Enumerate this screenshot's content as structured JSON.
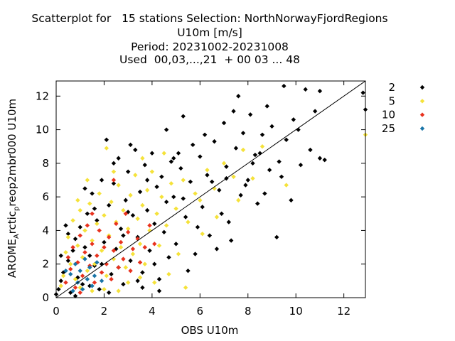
{
  "title_lines": [
    "Scatterplot for   15 stations Selection: NorthNorwayFjordRegions",
    "U10m [m/s]",
    "Period: 20231002-20231008",
    "Used  00,03,...,21  + 00 03 ... 48"
  ],
  "chart_data": {
    "type": "scatter",
    "xlabel": "OBS U10m",
    "ylabel": "AROME_Arctic_preop2mbr000 U10m",
    "ylabel_parts": {
      "main1": "AROME",
      "sub1": "A",
      "main2": "rctic",
      "sub2": "p",
      "main3": "reop2mbr000 U10m"
    },
    "xlim": [
      0,
      12.9
    ],
    "ylim": [
      0,
      12.9
    ],
    "xticks": [
      "0",
      "2",
      "4",
      "6",
      "8",
      "10",
      "12"
    ],
    "yticks": [
      "0",
      "2",
      "4",
      "6",
      "8",
      "10",
      "12"
    ],
    "grid": false,
    "legend_position": "right",
    "diagonal_line": true,
    "series": [
      {
        "name": "2",
        "color": "#000000",
        "points": [
          [
            0.0,
            0.2
          ],
          [
            0.1,
            0.5
          ],
          [
            0.2,
            1.0
          ],
          [
            0.3,
            1.5
          ],
          [
            0.5,
            2.2
          ],
          [
            0.6,
            0.3
          ],
          [
            0.7,
            2.8
          ],
          [
            0.8,
            3.5
          ],
          [
            0.9,
            1.2
          ],
          [
            1.0,
            4.2
          ],
          [
            1.1,
            0.8
          ],
          [
            1.2,
            3.0
          ],
          [
            1.3,
            5.0
          ],
          [
            1.4,
            2.5
          ],
          [
            1.5,
            6.2
          ],
          [
            1.6,
            1.9
          ],
          [
            1.7,
            4.6
          ],
          [
            1.8,
            0.5
          ],
          [
            1.9,
            7.0
          ],
          [
            2.0,
            3.3
          ],
          [
            2.1,
            9.4
          ],
          [
            2.2,
            5.5
          ],
          [
            2.3,
            1.4
          ],
          [
            2.4,
            6.8
          ],
          [
            2.5,
            2.9
          ],
          [
            2.6,
            8.3
          ],
          [
            2.7,
            4.1
          ],
          [
            2.8,
            0.8
          ],
          [
            2.9,
            5.8
          ],
          [
            3.0,
            7.5
          ],
          [
            3.1,
            2.2
          ],
          [
            3.2,
            4.9
          ],
          [
            3.3,
            8.8
          ],
          [
            3.4,
            3.6
          ],
          [
            3.5,
            6.3
          ],
          [
            3.6,
            1.5
          ],
          [
            3.7,
            7.9
          ],
          [
            3.8,
            5.2
          ],
          [
            3.9,
            2.8
          ],
          [
            4.0,
            8.6
          ],
          [
            4.1,
            4.4
          ],
          [
            4.2,
            6.6
          ],
          [
            4.3,
            1.1
          ],
          [
            4.4,
            7.2
          ],
          [
            4.5,
            3.9
          ],
          [
            4.6,
            5.7
          ],
          [
            4.7,
            2.4
          ],
          [
            4.8,
            8.1
          ],
          [
            4.9,
            6.0
          ],
          [
            5.0,
            3.2
          ],
          [
            5.2,
            7.7
          ],
          [
            5.3,
            10.8
          ],
          [
            5.4,
            4.8
          ],
          [
            5.6,
            6.9
          ],
          [
            5.8,
            2.6
          ],
          [
            6.0,
            8.4
          ],
          [
            6.1,
            5.4
          ],
          [
            6.3,
            7.3
          ],
          [
            6.4,
            3.7
          ],
          [
            6.6,
            9.3
          ],
          [
            6.8,
            6.4
          ],
          [
            7.0,
            10.4
          ],
          [
            7.1,
            7.8
          ],
          [
            7.2,
            4.5
          ],
          [
            7.4,
            11.1
          ],
          [
            7.5,
            8.9
          ],
          [
            7.7,
            6.1
          ],
          [
            7.8,
            9.8
          ],
          [
            8.0,
            7.0
          ],
          [
            8.1,
            10.9
          ],
          [
            8.3,
            8.5
          ],
          [
            8.4,
            5.6
          ],
          [
            8.6,
            9.7
          ],
          [
            8.8,
            11.4
          ],
          [
            8.9,
            7.6
          ],
          [
            9.0,
            10.2
          ],
          [
            9.2,
            3.6
          ],
          [
            9.3,
            8.1
          ],
          [
            9.5,
            12.6
          ],
          [
            9.6,
            9.4
          ],
          [
            9.8,
            5.8
          ],
          [
            9.9,
            10.6
          ],
          [
            10.2,
            7.9
          ],
          [
            10.4,
            12.4
          ],
          [
            10.6,
            8.8
          ],
          [
            10.8,
            11.1
          ],
          [
            11.0,
            12.3
          ],
          [
            11.2,
            8.2
          ],
          [
            12.8,
            12.2
          ],
          [
            12.9,
            11.2
          ],
          [
            1.2,
            6.5
          ],
          [
            2.4,
            8.0
          ],
          [
            3.1,
            9.1
          ],
          [
            5.1,
            8.6
          ],
          [
            5.9,
            4.2
          ],
          [
            6.7,
            2.9
          ],
          [
            7.3,
            3.4
          ],
          [
            4.6,
            10.0
          ],
          [
            2.8,
            3.7
          ],
          [
            1.6,
            5.3
          ],
          [
            0.4,
            4.3
          ],
          [
            8.7,
            6.2
          ],
          [
            9.4,
            7.2
          ],
          [
            10.1,
            10.0
          ],
          [
            6.2,
            9.7
          ],
          [
            7.6,
            12.0
          ],
          [
            4.3,
            0.4
          ],
          [
            5.5,
            1.6
          ],
          [
            3.6,
            0.6
          ],
          [
            2.2,
            0.3
          ],
          [
            1.4,
            0.7
          ],
          [
            0.8,
            0.1
          ],
          [
            0.2,
            2.5
          ],
          [
            0.5,
            3.8
          ],
          [
            6.9,
            5.0
          ],
          [
            7.9,
            6.7
          ],
          [
            3.0,
            5.1
          ],
          [
            3.8,
            7.0
          ],
          [
            4.9,
            8.3
          ],
          [
            5.7,
            9.1
          ],
          [
            8.2,
            8.0
          ],
          [
            1.9,
            2.0
          ],
          [
            2.6,
            1.8
          ],
          [
            3.4,
            1.0
          ],
          [
            4.1,
            2.0
          ],
          [
            5.3,
            5.9
          ],
          [
            6.5,
            6.9
          ],
          [
            7.1,
            7.1
          ],
          [
            8.5,
            8.6
          ],
          [
            11.0,
            8.3
          ]
        ]
      },
      {
        "name": "5",
        "color": "#f5e23a",
        "points": [
          [
            0.3,
            1.3
          ],
          [
            0.5,
            3.6
          ],
          [
            0.6,
            2.0
          ],
          [
            0.7,
            4.6
          ],
          [
            0.8,
            1.1
          ],
          [
            0.9,
            3.1
          ],
          [
            1.0,
            5.2
          ],
          [
            1.1,
            2.4
          ],
          [
            1.2,
            4.0
          ],
          [
            1.3,
            1.6
          ],
          [
            1.4,
            5.6
          ],
          [
            1.5,
            3.4
          ],
          [
            1.6,
            2.0
          ],
          [
            1.7,
            4.4
          ],
          [
            1.8,
            6.2
          ],
          [
            1.9,
            2.8
          ],
          [
            2.0,
            4.9
          ],
          [
            2.1,
            1.3
          ],
          [
            2.1,
            8.9
          ],
          [
            2.2,
            3.7
          ],
          [
            2.3,
            5.7
          ],
          [
            2.4,
            2.3
          ],
          [
            2.5,
            4.5
          ],
          [
            2.6,
            6.7
          ],
          [
            2.7,
            3.0
          ],
          [
            2.8,
            5.2
          ],
          [
            2.9,
            1.8
          ],
          [
            3.0,
            4.1
          ],
          [
            3.1,
            6.1
          ],
          [
            3.2,
            2.6
          ],
          [
            3.3,
            7.3
          ],
          [
            3.4,
            4.7
          ],
          [
            3.5,
            3.2
          ],
          [
            3.6,
            5.5
          ],
          [
            3.7,
            2.0
          ],
          [
            3.8,
            6.4
          ],
          [
            3.9,
            4.0
          ],
          [
            4.0,
            7.5
          ],
          [
            4.2,
            5.0
          ],
          [
            4.3,
            3.1
          ],
          [
            4.4,
            6.0
          ],
          [
            4.6,
            4.3
          ],
          [
            4.8,
            6.8
          ],
          [
            5.0,
            5.3
          ],
          [
            5.1,
            2.6
          ],
          [
            5.3,
            7.0
          ],
          [
            5.5,
            4.5
          ],
          [
            5.8,
            6.2
          ],
          [
            6.0,
            5.8
          ],
          [
            6.3,
            7.6
          ],
          [
            6.6,
            6.5
          ],
          [
            7.0,
            8.0
          ],
          [
            7.4,
            7.2
          ],
          [
            7.8,
            8.8
          ],
          [
            8.2,
            7.1
          ],
          [
            8.6,
            9.0
          ],
          [
            9.6,
            6.7
          ],
          [
            12.9,
            9.7
          ],
          [
            0.2,
            0.7
          ],
          [
            0.4,
            2.7
          ],
          [
            1.0,
            0.6
          ],
          [
            1.5,
            0.4
          ],
          [
            2.0,
            0.5
          ],
          [
            2.6,
            0.4
          ],
          [
            3.0,
            0.9
          ],
          [
            3.5,
            1.2
          ],
          [
            4.1,
            0.9
          ],
          [
            4.7,
            1.4
          ],
          [
            5.4,
            0.6
          ],
          [
            1.3,
            7.0
          ],
          [
            2.4,
            7.5
          ],
          [
            3.6,
            8.3
          ],
          [
            4.5,
            8.6
          ],
          [
            0.9,
            5.8
          ],
          [
            6.1,
            3.8
          ],
          [
            6.7,
            4.8
          ],
          [
            7.6,
            5.8
          ]
        ]
      },
      {
        "name": "10",
        "color": "#e8321e",
        "points": [
          [
            0.4,
            0.9
          ],
          [
            0.5,
            2.4
          ],
          [
            0.6,
            1.7
          ],
          [
            0.7,
            3.0
          ],
          [
            0.8,
            0.6
          ],
          [
            0.9,
            2.1
          ],
          [
            1.0,
            3.7
          ],
          [
            1.1,
            1.3
          ],
          [
            1.2,
            2.7
          ],
          [
            1.3,
            4.3
          ],
          [
            1.4,
            1.9
          ],
          [
            1.5,
            3.2
          ],
          [
            1.6,
            0.9
          ],
          [
            1.7,
            2.5
          ],
          [
            1.8,
            4.0
          ],
          [
            1.9,
            1.5
          ],
          [
            2.0,
            3.0
          ],
          [
            2.1,
            2.0
          ],
          [
            2.2,
            3.6
          ],
          [
            2.3,
            1.1
          ],
          [
            2.4,
            2.8
          ],
          [
            2.5,
            4.4
          ],
          [
            2.6,
            1.8
          ],
          [
            2.7,
            3.3
          ],
          [
            2.8,
            2.3
          ],
          [
            3.0,
            3.9
          ],
          [
            3.1,
            1.6
          ],
          [
            3.2,
            2.9
          ],
          [
            3.4,
            3.5
          ],
          [
            3.5,
            2.1
          ],
          [
            3.7,
            3.0
          ],
          [
            3.9,
            4.3
          ],
          [
            4.1,
            3.2
          ],
          [
            2.4,
            7.0
          ],
          [
            1.5,
            5.0
          ],
          [
            1.0,
            0.3
          ],
          [
            2.9,
            5.0
          ]
        ]
      },
      {
        "name": "25",
        "color": "#1a75a8",
        "points": [
          [
            0.6,
            1.4
          ],
          [
            0.7,
            0.4
          ],
          [
            0.8,
            2.0
          ],
          [
            0.9,
            0.9
          ],
          [
            1.0,
            1.6
          ],
          [
            1.1,
            0.5
          ],
          [
            1.2,
            2.3
          ],
          [
            1.3,
            1.1
          ],
          [
            1.4,
            1.8
          ],
          [
            1.5,
            0.7
          ],
          [
            1.6,
            1.3
          ],
          [
            1.7,
            2.1
          ],
          [
            1.9,
            1.0
          ],
          [
            0.4,
            1.6
          ]
        ]
      }
    ]
  }
}
